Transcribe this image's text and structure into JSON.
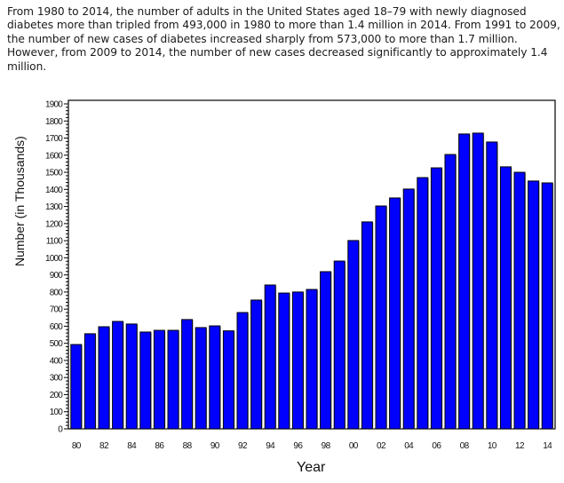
{
  "description": "From 1980 to 2014, the number of adults in the United States aged 18–79 with newly diagnosed diabetes more than tripled from 493,000 in 1980 to more than 1.4 million in 2014. From 1991 to 2009, the number of new cases of diabetes increased sharply from 573,000 to more than 1.7 million. However, from 2009 to 2014, the number of new cases decreased significantly to approximately 1.4 million.",
  "colors": {
    "bar": "#0000ff",
    "bar_border": "#000000",
    "axis": "#000000"
  },
  "chart_data": {
    "type": "bar",
    "title": "",
    "xlabel": "Year",
    "ylabel": "Number (in Thousands)",
    "ylim": [
      0,
      1900
    ],
    "yticks": [
      0,
      100,
      200,
      300,
      400,
      500,
      600,
      700,
      800,
      900,
      1000,
      1100,
      1200,
      1300,
      1400,
      1500,
      1600,
      1700,
      1800,
      1900
    ],
    "xtick_labels": [
      "80",
      "82",
      "84",
      "86",
      "88",
      "90",
      "92",
      "94",
      "96",
      "98",
      "00",
      "02",
      "04",
      "06",
      "08",
      "10",
      "12",
      "14"
    ],
    "grid": false,
    "legend": null,
    "categories": [
      "1980",
      "1981",
      "1982",
      "1983",
      "1984",
      "1985",
      "1986",
      "1987",
      "1988",
      "1989",
      "1990",
      "1991",
      "1992",
      "1993",
      "1994",
      "1995",
      "1996",
      "1997",
      "1998",
      "1999",
      "2000",
      "2001",
      "2002",
      "2003",
      "2004",
      "2005",
      "2006",
      "2007",
      "2008",
      "2009",
      "2010",
      "2011",
      "2012",
      "2013",
      "2014"
    ],
    "series": [
      {
        "name": "Number of new cases (thousands)",
        "values": [
          493,
          556,
          597,
          628,
          613,
          566,
          576,
          576,
          639,
          592,
          602,
          573,
          680,
          753,
          841,
          794,
          800,
          815,
          919,
          981,
          1101,
          1210,
          1303,
          1350,
          1402,
          1469,
          1526,
          1604,
          1724,
          1729,
          1677,
          1532,
          1500,
          1449,
          1438
        ]
      }
    ]
  }
}
